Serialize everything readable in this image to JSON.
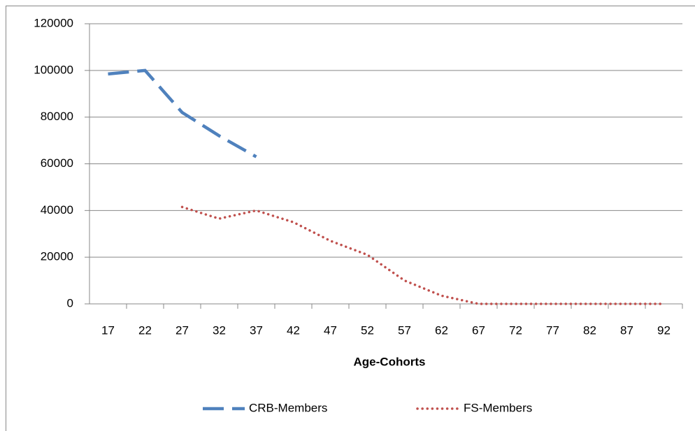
{
  "chart_data": {
    "type": "line",
    "x_label": "Age-Cohorts",
    "categories": [
      17,
      22,
      27,
      32,
      37,
      42,
      47,
      52,
      57,
      62,
      67,
      72,
      77,
      82,
      87,
      92
    ],
    "series": [
      {
        "name": "CRB-Members",
        "color": "#4f81bd",
        "style": "dashed",
        "values": [
          98500,
          100000,
          82000,
          72000,
          63000,
          null,
          null,
          null,
          null,
          null,
          null,
          null,
          null,
          null,
          null,
          null
        ]
      },
      {
        "name": "FS-Members",
        "color": "#c0504d",
        "style": "dotted",
        "values": [
          null,
          null,
          41500,
          36500,
          40000,
          35000,
          27000,
          21000,
          10000,
          3500,
          0,
          0,
          0,
          0,
          0,
          0
        ]
      }
    ],
    "ylim": [
      0,
      120000
    ],
    "yticks": [
      0,
      20000,
      40000,
      60000,
      80000,
      100000,
      120000
    ],
    "grid": true,
    "legend": "bottom"
  }
}
